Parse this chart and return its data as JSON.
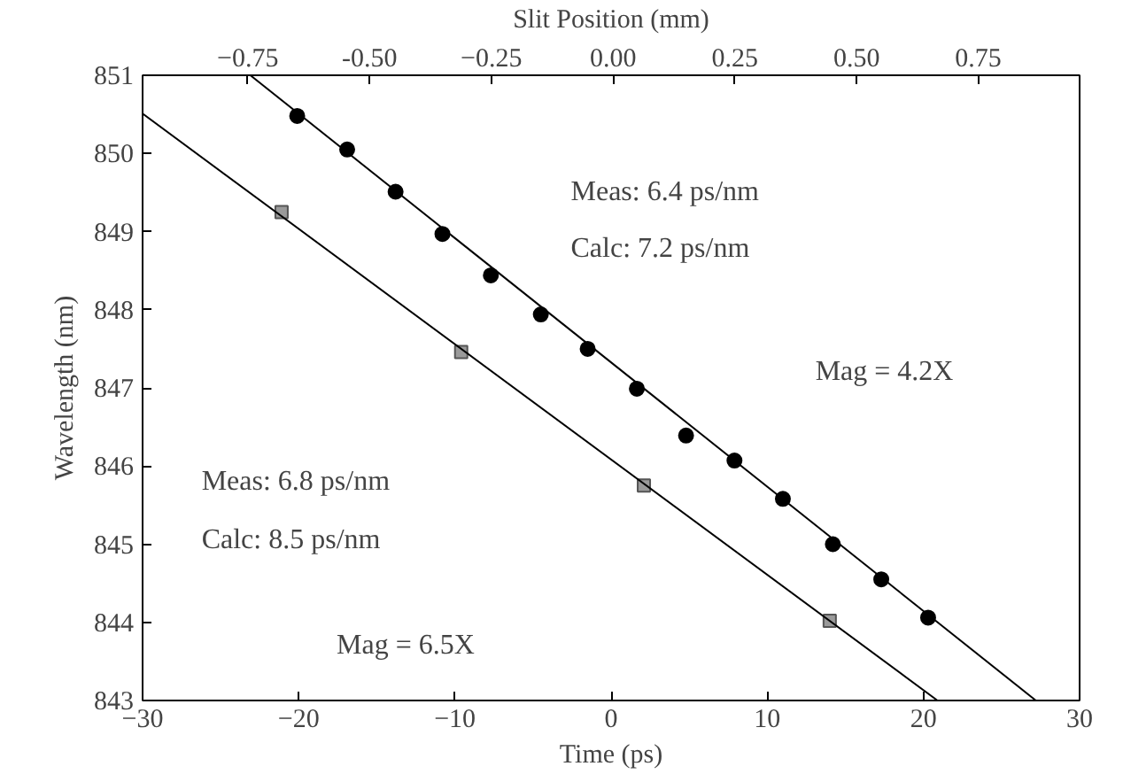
{
  "chart_data": {
    "type": "scatter",
    "xlabel": "Time (ps)",
    "ylabel": "Wavelength (nm)",
    "x2label": "Slit Position (mm)",
    "xlim": [
      -30,
      30
    ],
    "xticks": [
      -30,
      -20,
      -10,
      0,
      10,
      20,
      30
    ],
    "ylim": [
      843,
      851
    ],
    "yticks": [
      843,
      844,
      845,
      846,
      847,
      848,
      849,
      850,
      851
    ],
    "x2lim": [
      -0.966,
      0.958
    ],
    "x2ticks": [
      -0.75,
      {
        "value": -0.5,
        "label": "-0.50"
      },
      -0.25,
      {
        "value": 0,
        "label": "0.00"
      },
      0.25,
      {
        "value": 0.5,
        "label": "0.50"
      },
      0.75
    ],
    "grid": false,
    "series": [
      {
        "marker": "circle",
        "color": "#000000",
        "x": [
          -20.1,
          -16.9,
          -13.8,
          -10.8,
          -7.7,
          -4.5,
          -1.5,
          1.65,
          4.8,
          7.9,
          11.0,
          14.2,
          17.3,
          20.3
        ],
        "values": [
          850.48,
          850.05,
          849.51,
          848.97,
          848.44,
          847.94,
          847.5,
          846.99,
          846.39,
          846.07,
          845.58,
          845.0,
          844.55,
          844.06
        ]
      },
      {
        "marker": "square",
        "color": "#9a9a9a",
        "x": [
          -21.1,
          -9.6,
          2.1,
          14.0
        ],
        "values": [
          849.25,
          847.46,
          845.75,
          844.02
        ]
      },
      {
        "type": "line",
        "marker": "none",
        "color": "#000000",
        "x": [
          -23.1,
          27.2
        ],
        "values": [
          851,
          843
        ]
      },
      {
        "type": "line",
        "marker": "none",
        "color": "#000000",
        "x": [
          -30,
          20.9
        ],
        "values": [
          850.51,
          843
        ]
      }
    ],
    "annotations": [
      "Meas:  6.4 ps/nm",
      "Calc:  7.2 ps/nm",
      "Mag = 4.2X",
      "Meas:  6.8 ps/nm",
      "Calc:  8.5 ps/nm",
      "Mag = 6.5X"
    ]
  }
}
